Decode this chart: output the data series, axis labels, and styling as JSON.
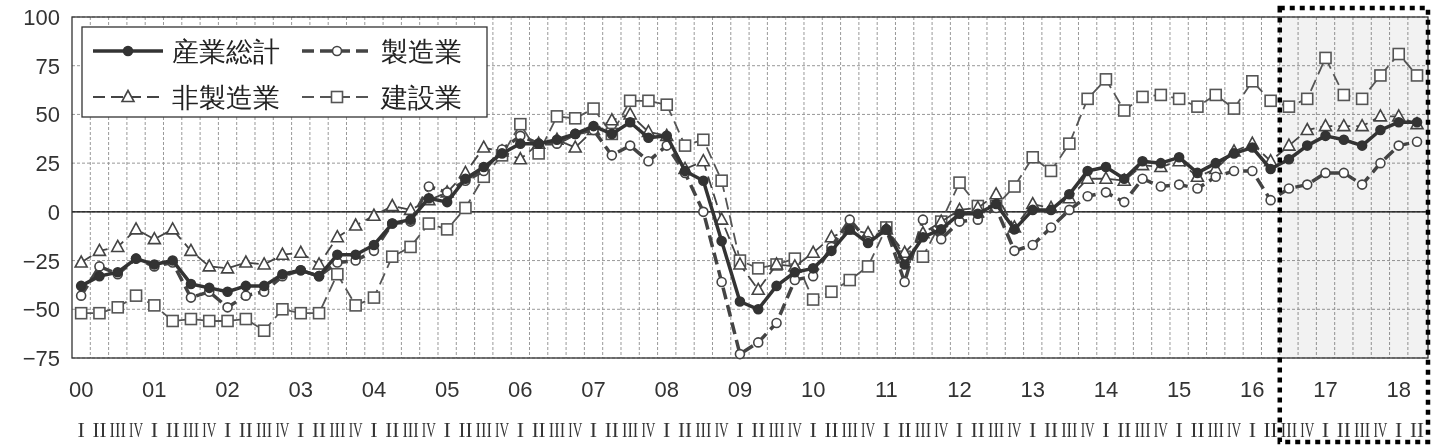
{
  "chart_data": {
    "type": "line",
    "x": [
      2000,
      2000.25,
      2000.5,
      2000.75,
      2001,
      2001.25,
      2001.5,
      2001.75,
      2002,
      2002.25,
      2002.5,
      2002.75,
      2003,
      2003.25,
      2003.5,
      2003.75,
      2004,
      2004.25,
      2004.5,
      2004.75,
      2005,
      2005.25,
      2005.5,
      2005.75,
      2006,
      2006.25,
      2006.5,
      2006.75,
      2007,
      2007.25,
      2007.5,
      2007.75,
      2008,
      2008.25,
      2008.5,
      2008.75,
      2009,
      2009.25,
      2009.5,
      2009.75,
      2010,
      2010.25,
      2010.5,
      2010.75,
      2011,
      2011.25,
      2011.5,
      2011.75,
      2012,
      2012.25,
      2012.5,
      2012.75,
      2013,
      2013.25,
      2013.5,
      2013.75,
      2014,
      2014.25,
      2014.5,
      2014.75,
      2015,
      2015.25,
      2015.5,
      2015.75,
      2016,
      2016.25,
      2016.5,
      2016.75,
      2017,
      2017.25,
      2017.5,
      2017.75,
      2018,
      2018.25
    ],
    "series": [
      {
        "name": "産業総計",
        "color": "#333333",
        "marker": "circle",
        "line_style": "solid",
        "values": [
          -38,
          -33,
          -31,
          -24,
          -27,
          -25,
          -37,
          -39,
          -41,
          -38,
          -38,
          -32,
          -30,
          -33,
          -22,
          -22,
          -17,
          -6,
          -4,
          7,
          5,
          17,
          23,
          30,
          35,
          35,
          37,
          40,
          44,
          40,
          46,
          38,
          39,
          21,
          16,
          -15,
          -46,
          -50,
          -38,
          -31,
          -29,
          -20,
          -9,
          -16,
          -9,
          -27,
          -13,
          -9,
          -1,
          -1,
          4,
          -9,
          1,
          1,
          9,
          21,
          23,
          17,
          26,
          25,
          28,
          20,
          25,
          30,
          33,
          22,
          27,
          34,
          39,
          37,
          34,
          42,
          46,
          46
        ]
      },
      {
        "name": "製造業",
        "color": "#444444",
        "marker": "circle",
        "line_style": "dashed",
        "values": [
          -43,
          -28,
          -32,
          -24,
          -28,
          -26,
          -44,
          -41,
          -49,
          -43,
          -41,
          -33,
          -30,
          -33,
          -26,
          -25,
          -20,
          -6,
          -5,
          13,
          10,
          16,
          21,
          32,
          39,
          35,
          35,
          40,
          42,
          29,
          34,
          26,
          34,
          20,
          0,
          -36,
          -73,
          -67,
          -57,
          -35,
          -33,
          -18,
          -4,
          -15,
          -9,
          -36,
          -4,
          -14,
          -5,
          -4,
          2,
          -20,
          -17,
          -8,
          1,
          8,
          10,
          5,
          17,
          13,
          14,
          12,
          18,
          21,
          21,
          6,
          12,
          14,
          20,
          20,
          14,
          25,
          34,
          36
        ]
      },
      {
        "name": "非製造業",
        "color": "#444444",
        "marker": "triangle",
        "line_style": "dashed",
        "values": [
          -26,
          -20,
          -18,
          -9,
          -14,
          -9,
          -20,
          -28,
          -29,
          -26,
          -27,
          -22,
          -21,
          -27,
          -13,
          -7,
          -2,
          3,
          1,
          6,
          10,
          20,
          33,
          31,
          27,
          35,
          37,
          33,
          42,
          47,
          50,
          41,
          39,
          22,
          26,
          -4,
          -27,
          -40,
          -27,
          -28,
          -21,
          -13,
          -9,
          -11,
          -9,
          -21,
          -11,
          -5,
          1,
          2,
          9,
          -8,
          4,
          2,
          7,
          17,
          17,
          16,
          24,
          23,
          26,
          18,
          22,
          31,
          35,
          26,
          34,
          42,
          44,
          44,
          44,
          49,
          49,
          45
        ]
      },
      {
        "name": "建設業",
        "color": "#555555",
        "marker": "square",
        "line_style": "dashed",
        "values": [
          -52,
          -52,
          -49,
          -43,
          -48,
          -56,
          -55,
          -56,
          -56,
          -55,
          -61,
          -50,
          -52,
          -52,
          -32,
          -48,
          -44,
          -23,
          -18,
          -6,
          -9,
          2,
          18,
          29,
          45,
          30,
          49,
          48,
          53,
          40,
          57,
          57,
          55,
          34,
          37,
          16,
          -25,
          -29,
          -27,
          -24,
          -45,
          -41,
          -35,
          -28,
          -8,
          -23,
          -23,
          -5,
          15,
          3,
          3,
          13,
          28,
          21,
          35,
          58,
          68,
          52,
          59,
          60,
          58,
          54,
          60,
          53,
          67,
          57,
          54,
          58,
          79,
          60,
          58,
          70,
          81,
          70
        ]
      }
    ],
    "xlim": [
      1999.875,
      2018.4
    ],
    "ylim": [
      -75,
      100
    ],
    "yticks": [
      -75,
      -50,
      -25,
      0,
      25,
      50,
      75,
      100
    ],
    "xticks": [
      {
        "value": 2000,
        "label": "00"
      },
      {
        "value": 2001,
        "label": "01"
      },
      {
        "value": 2002,
        "label": "02"
      },
      {
        "value": 2003,
        "label": "03"
      },
      {
        "value": 2004,
        "label": "04"
      },
      {
        "value": 2005,
        "label": "05"
      },
      {
        "value": 2006,
        "label": "06"
      },
      {
        "value": 2007,
        "label": "07"
      },
      {
        "value": 2008,
        "label": "08"
      },
      {
        "value": 2009,
        "label": "09"
      },
      {
        "value": 2010,
        "label": "10"
      },
      {
        "value": 2011,
        "label": "11"
      },
      {
        "value": 2012,
        "label": "12"
      },
      {
        "value": 2013,
        "label": "13"
      },
      {
        "value": 2014,
        "label": "14"
      },
      {
        "value": 2015,
        "label": "15"
      },
      {
        "value": 2016,
        "label": "16"
      },
      {
        "value": 2017,
        "label": "17"
      },
      {
        "value": 2018,
        "label": "18"
      }
    ],
    "annotations": [
      "I",
      "II",
      "III",
      "IV",
      "I",
      "II",
      "III",
      "IV",
      "I",
      "II",
      "III",
      "IV",
      "I",
      "II",
      "III",
      "IV",
      "I",
      "II",
      "III",
      "IV",
      "I",
      "II",
      "III",
      "IV",
      "I",
      "II",
      "III",
      "IV",
      "I",
      "II",
      "III",
      "IV",
      "I",
      "II",
      "III",
      "IV",
      "I",
      "II",
      "III",
      "IV",
      "I",
      "II",
      "III",
      "IV",
      "I",
      "II",
      "III",
      "IV",
      "I",
      "II",
      "III",
      "IV",
      "I",
      "II",
      "III",
      "IV",
      "I",
      "II",
      "III",
      "IV",
      "I",
      "II",
      "III",
      "IV",
      "I",
      "II",
      "III",
      "IV",
      "I",
      "II",
      "III",
      "IV",
      "I",
      "II"
    ],
    "ref_lines": [
      {
        "axis": "y",
        "value": 0,
        "color": "#000000"
      }
    ],
    "bands": [
      {
        "axis": "x",
        "from": 2016.375,
        "to": 2018.4,
        "color": "#000000"
      }
    ],
    "grid": true,
    "legend": "top left"
  }
}
